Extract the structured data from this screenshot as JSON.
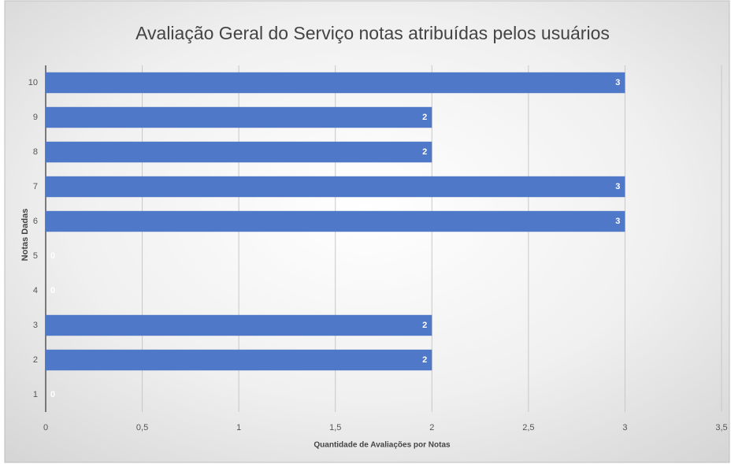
{
  "chart_data": {
    "type": "bar",
    "orientation": "horizontal",
    "title": "Avaliação Geral do Serviço notas atribuídas pelos usuários",
    "x_label": "Quantidade de Avaliações por Notas",
    "y_label": "Notas Dadas",
    "categories": [
      "1",
      "2",
      "3",
      "4",
      "5",
      "6",
      "7",
      "8",
      "9",
      "10"
    ],
    "values": [
      0,
      2,
      2,
      0,
      0,
      3,
      3,
      2,
      2,
      3
    ],
    "color": "#4f78c9",
    "xlim": [
      0,
      3.5
    ],
    "xticks": [
      0,
      {
        "value": 0.5,
        "label": "0,5"
      },
      1,
      {
        "value": 1.5,
        "label": "1,5"
      },
      2,
      {
        "value": 2.5,
        "label": "2,5"
      },
      3,
      {
        "value": 3.5,
        "label": "3,5"
      }
    ],
    "grid": true
  }
}
